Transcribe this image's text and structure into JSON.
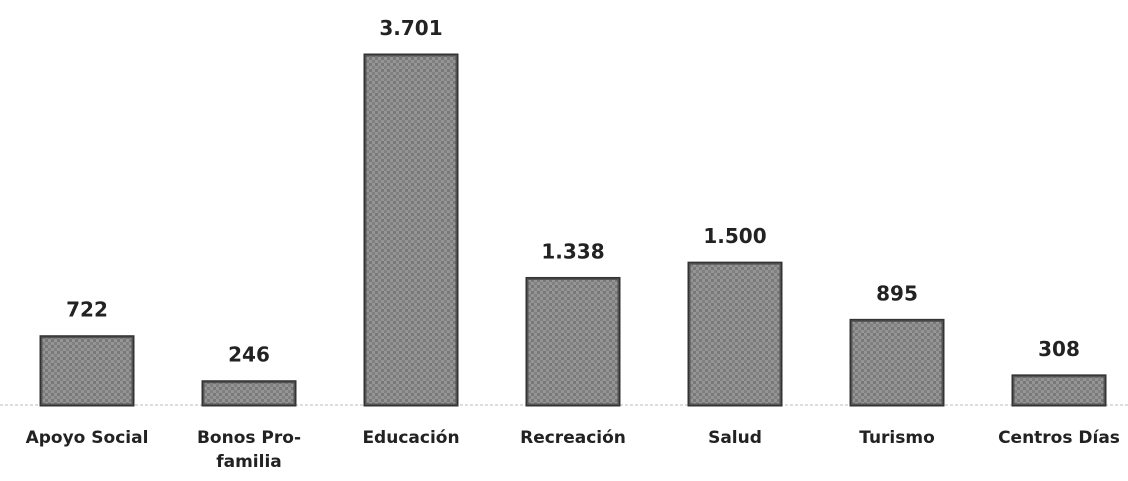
{
  "chart_data": {
    "type": "bar",
    "categories": [
      "Apoyo Social",
      "Bonos Pro-familia",
      "Educación",
      "Recreación",
      "Salud",
      "Turismo",
      "Centros Días"
    ],
    "values": [
      722,
      246,
      3701,
      1338,
      1500,
      895,
      308
    ],
    "value_labels": [
      "722",
      "246",
      "3.701",
      "1.338",
      "1.500",
      "895",
      "308"
    ],
    "color": "#8c8c8c"
  }
}
